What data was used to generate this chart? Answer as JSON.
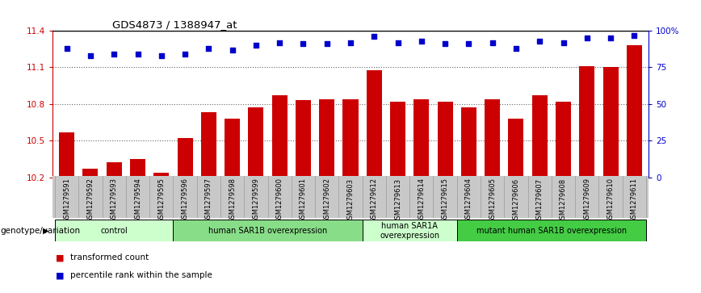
{
  "title": "GDS4873 / 1388947_at",
  "samples": [
    "GSM1279591",
    "GSM1279592",
    "GSM1279593",
    "GSM1279594",
    "GSM1279595",
    "GSM1279596",
    "GSM1279597",
    "GSM1279598",
    "GSM1279599",
    "GSM1279600",
    "GSM1279601",
    "GSM1279602",
    "GSM1279603",
    "GSM1279612",
    "GSM1279613",
    "GSM1279614",
    "GSM1279615",
    "GSM1279604",
    "GSM1279605",
    "GSM1279606",
    "GSM1279607",
    "GSM1279608",
    "GSM1279609",
    "GSM1279610",
    "GSM1279611"
  ],
  "bar_values": [
    10.57,
    10.27,
    10.32,
    10.35,
    10.24,
    10.52,
    10.73,
    10.68,
    10.77,
    10.87,
    10.83,
    10.84,
    10.84,
    11.08,
    10.82,
    10.84,
    10.82,
    10.77,
    10.84,
    10.68,
    10.87,
    10.82,
    11.11,
    11.1,
    11.28
  ],
  "percentile_values": [
    88,
    83,
    84,
    84,
    83,
    84,
    88,
    87,
    90,
    92,
    91,
    91,
    92,
    96,
    92,
    93,
    91,
    91,
    92,
    88,
    93,
    92,
    95,
    95,
    97
  ],
  "ylim_left": [
    10.2,
    11.4
  ],
  "ylim_right": [
    0,
    100
  ],
  "yticks_left": [
    10.2,
    10.5,
    10.8,
    11.1,
    11.4
  ],
  "ytick_labels_left": [
    "10.2",
    "10.5",
    "10.8",
    "11.1",
    "11.4"
  ],
  "yticks_right": [
    0,
    25,
    50,
    75,
    100
  ],
  "ytick_labels_right": [
    "0",
    "25",
    "50",
    "75",
    "100%"
  ],
  "bar_color": "#cc0000",
  "dot_color": "#0000cc",
  "groups": [
    {
      "label": "control",
      "start": 0,
      "end": 5,
      "color": "#ccffcc"
    },
    {
      "label": "human SAR1B overexpression",
      "start": 5,
      "end": 13,
      "color": "#88dd88"
    },
    {
      "label": "human SAR1A\noverexpression",
      "start": 13,
      "end": 17,
      "color": "#ccffcc"
    },
    {
      "label": "mutant human SAR1B overexpression",
      "start": 17,
      "end": 25,
      "color": "#44cc44"
    }
  ],
  "genotype_label": "genotype/variation",
  "legend_items": [
    {
      "color": "#cc0000",
      "label": "transformed count"
    },
    {
      "color": "#0000cc",
      "label": "percentile rank within the sample"
    }
  ],
  "xtick_bg_color": "#c8c8c8",
  "grid_color": "#666666",
  "fig_bg": "#ffffff"
}
